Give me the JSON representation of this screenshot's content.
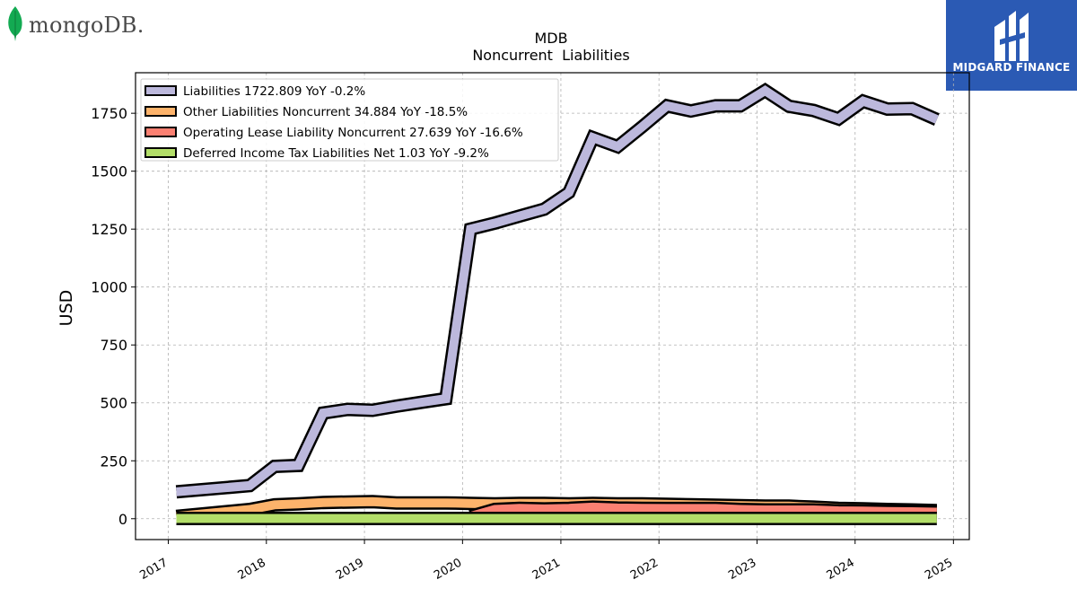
{
  "brand": {
    "company_logo_text": "mongoDB.",
    "publisher_logo_text": "MIDGARD FINANCE"
  },
  "chart_data": {
    "type": "area",
    "title": "MDB",
    "subtitle": "Noncurrent  Liabilities",
    "xlabel": "",
    "ylabel": "USD",
    "xlim": [
      "2016-09-01",
      "2025-03-01"
    ],
    "ylim": [
      -90,
      1925
    ],
    "xticks": [
      "2017",
      "2018",
      "2019",
      "2020",
      "2021",
      "2022",
      "2023",
      "2024",
      "2025"
    ],
    "yticks": [
      0,
      250,
      500,
      750,
      1000,
      1250,
      1500,
      1750
    ],
    "grid": true,
    "legend_position": "top-left",
    "x": [
      "2017-01-31",
      "2017-10-31",
      "2018-01-31",
      "2018-04-30",
      "2018-07-31",
      "2018-10-31",
      "2019-01-31",
      "2019-04-30",
      "2019-07-31",
      "2019-10-31",
      "2020-01-31",
      "2020-04-30",
      "2020-07-31",
      "2020-10-31",
      "2021-01-31",
      "2021-04-30",
      "2021-07-31",
      "2021-10-31",
      "2022-01-31",
      "2022-04-30",
      "2022-07-31",
      "2022-10-31",
      "2023-01-31",
      "2023-04-30",
      "2023-07-31",
      "2023-10-31",
      "2024-01-31",
      "2024-04-30",
      "2024-07-31",
      "2024-10-31"
    ],
    "series": [
      {
        "name": "Liabilities",
        "legend": "Liabilities  1722.809 YoY -0.2%",
        "color": "#bcb8dc",
        "values": [
          116,
          143,
          226,
          230,
          456,
          472,
          468,
          486,
          502,
          518,
          1250,
          1276,
          1306,
          1336,
          1408,
          1645,
          1606,
          1692,
          1782,
          1760,
          1782,
          1782,
          1848,
          1780,
          1762,
          1726,
          1802,
          1768,
          1770,
          1723
        ]
      },
      {
        "name": "Other Liabilities Noncurrent",
        "legend": "Other Liabilities Noncurrent  34.884 YoY -18.5%",
        "color": "#fdb36b",
        "values": [
          10,
          40,
          60,
          64,
          70,
          72,
          74,
          68,
          68,
          68,
          66,
          64,
          66,
          66,
          64,
          66,
          64,
          64,
          62,
          60,
          58,
          56,
          54,
          54,
          50,
          45,
          43,
          40,
          38,
          35
        ]
      },
      {
        "name": "Operating Lease Liability Noncurrent",
        "legend": "Operating Lease Liability Noncurrent  27.639 YoY -16.6%",
        "color": "#fb8072",
        "values": [
          null,
          null,
          null,
          null,
          null,
          null,
          null,
          null,
          null,
          null,
          10,
          40,
          45,
          42,
          45,
          50,
          46,
          45,
          44,
          44,
          44,
          40,
          38,
          38,
          38,
          34,
          33,
          31,
          30,
          28
        ]
      },
      {
        "name": "Deferred Income Tax Liabilities Net",
        "legend": "Deferred Income Tax Liabilities Net  1.03 YoY -9.2%",
        "color": "#b3de69",
        "values": [
          1,
          1,
          1,
          1,
          1,
          1,
          1,
          1,
          1,
          1,
          1,
          1,
          1,
          1,
          1,
          1,
          1,
          1,
          1,
          1,
          1,
          1,
          1,
          1,
          1,
          1,
          1,
          1,
          1,
          1
        ]
      }
    ]
  }
}
